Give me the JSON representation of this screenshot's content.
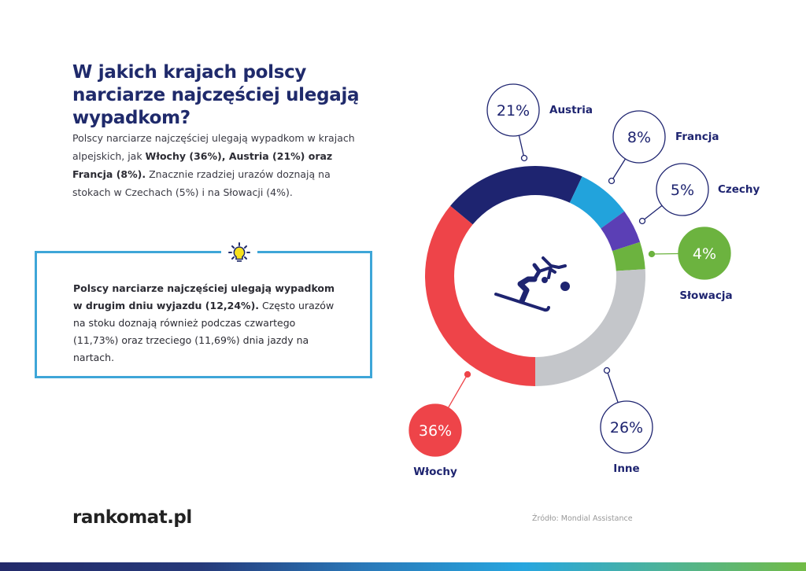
{
  "title": "W jakich krajach polscy narciarze najczęściej ulegają wypadkom?",
  "intro": {
    "part1": "Polscy narciarze najczęściej ulegają wypadkom w krajach alpejskich, jak ",
    "bold": "Włochy (36%), Austria (21%) oraz Francja (8%).",
    "part2": " Znacznie rzadziej urazów doznają na stokach w Czechach (5%) i na Słowacji (4%)."
  },
  "tip": {
    "icon": "lightbulb-icon",
    "bold": "Polscy narciarze najczęściej ulegają wypadkom w drugim dniu wyjazdu (12,24%).",
    "text": " Często urazów na stoku doznają również podczas czwartego (11,73%) oraz trzeciego (11,69%) dnia jazdy na nartach."
  },
  "center_icon": "skier-falling-icon",
  "footer": {
    "logo": "rankomat.pl",
    "source": "Źródło: Mondial Assistance"
  },
  "chart_data": {
    "type": "pie",
    "donut": true,
    "start": "bottom",
    "direction": "clockwise",
    "categories": [
      "Włochy",
      "Austria",
      "Francja",
      "Czechy",
      "Słowacja",
      "Inne"
    ],
    "values": [
      36,
      21,
      8,
      5,
      4,
      26
    ],
    "labels": [
      "36%",
      "21%",
      "8%",
      "5%",
      "4%",
      "26%"
    ],
    "colors": [
      "#ee4449",
      "#1e2470",
      "#22a3dc",
      "#5b3fb5",
      "#6cb33f",
      "#c4c6ca"
    ],
    "highlighted": [
      "Włochy",
      "Słowacja"
    ]
  }
}
